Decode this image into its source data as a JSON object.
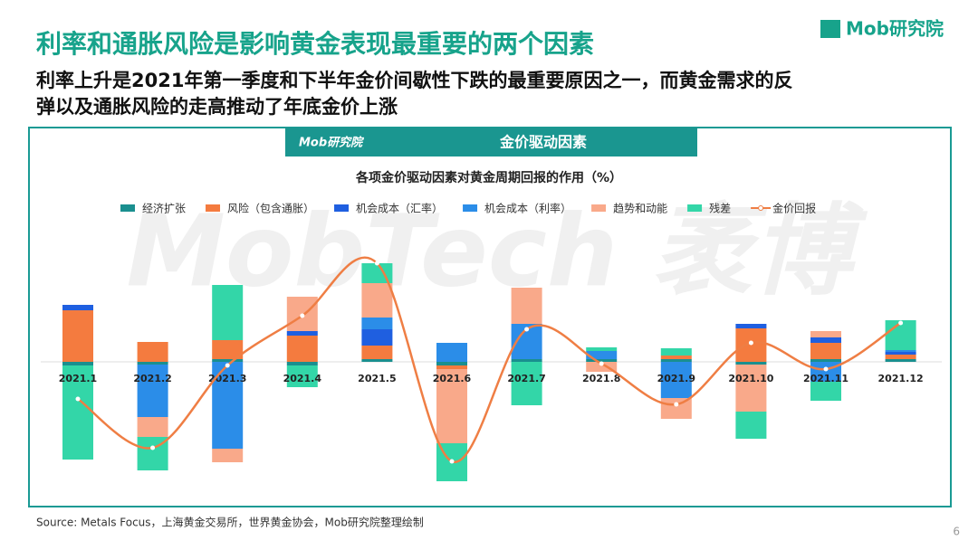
{
  "logo": "Mob研究院",
  "title": "利率和通胀风险是影响黄金表现最重要的两个因素",
  "subtitle_lines": [
    "利率上升是2021年第一季度和下半年金价间歇性下跌的最重要原因之一，而黄金需求的反",
    "弹以及通胀风险的走高推动了年底金价上涨"
  ],
  "panel_header": "金价驱动因素",
  "watermark": "MobTech 袤博",
  "source": "Source:   Metals Focus，上海黄金交易所，世界黄金协会，Mob研究院整理绘制",
  "page_number": "6",
  "chart_data": {
    "type": "bar",
    "title": "各项金价驱动因素对黄金周期回报的作用（%）",
    "categories": [
      "2021.1",
      "2021.2",
      "2021.3",
      "2021.4",
      "2021.5",
      "2021.6",
      "2021.7",
      "2021.8",
      "2021.9",
      "2021.10",
      "2021.11",
      "2021.12"
    ],
    "ylim": [
      -14,
      12
    ],
    "series": [
      {
        "name": "经济扩张",
        "color": "#1a8f8f",
        "values": [
          -0.4,
          -0.3,
          0.3,
          -0.4,
          0.3,
          -0.4,
          0.3,
          0.3,
          0.3,
          -0.3,
          0.3,
          0.3
        ]
      },
      {
        "name": "风险（包含通胀）",
        "color": "#f47b3f",
        "values": [
          5.7,
          2.2,
          2.1,
          2.9,
          1.5,
          -0.4,
          0,
          0,
          0.4,
          3.7,
          1.8,
          0.5
        ]
      },
      {
        "name": "机会成本（汇率）",
        "color": "#1f5fe0",
        "values": [
          0.6,
          0,
          0,
          0.5,
          1.8,
          0,
          0,
          0,
          0,
          0.5,
          0.6,
          0.3
        ]
      },
      {
        "name": "机会成本（利率）",
        "color": "#2b8de8",
        "values": [
          0,
          -5.8,
          -9.6,
          0,
          1.3,
          2.1,
          3.9,
          0.9,
          -4.0,
          0,
          -2.2,
          0.2
        ]
      },
      {
        "name": "趋势和动能",
        "color": "#f9a98a",
        "values": [
          0,
          -2.2,
          -1.5,
          3.8,
          3.8,
          -8.2,
          4.0,
          -1.1,
          -2.3,
          -5.2,
          0.7,
          0
        ]
      },
      {
        "name": "残差",
        "color": "#33d6a8",
        "values": [
          -10.4,
          -3.7,
          6.1,
          -2.4,
          2.2,
          -4.2,
          -4.8,
          0.4,
          0.8,
          -3.0,
          -2.1,
          3.3
        ]
      },
      {
        "name": "金价回报",
        "color": "#ef7e44",
        "type": "line",
        "values": [
          -4.1,
          -9.5,
          -0.4,
          5.1,
          10.9,
          -11.0,
          3.6,
          -0.2,
          -4.7,
          2.1,
          -0.8,
          4.3
        ]
      }
    ]
  }
}
